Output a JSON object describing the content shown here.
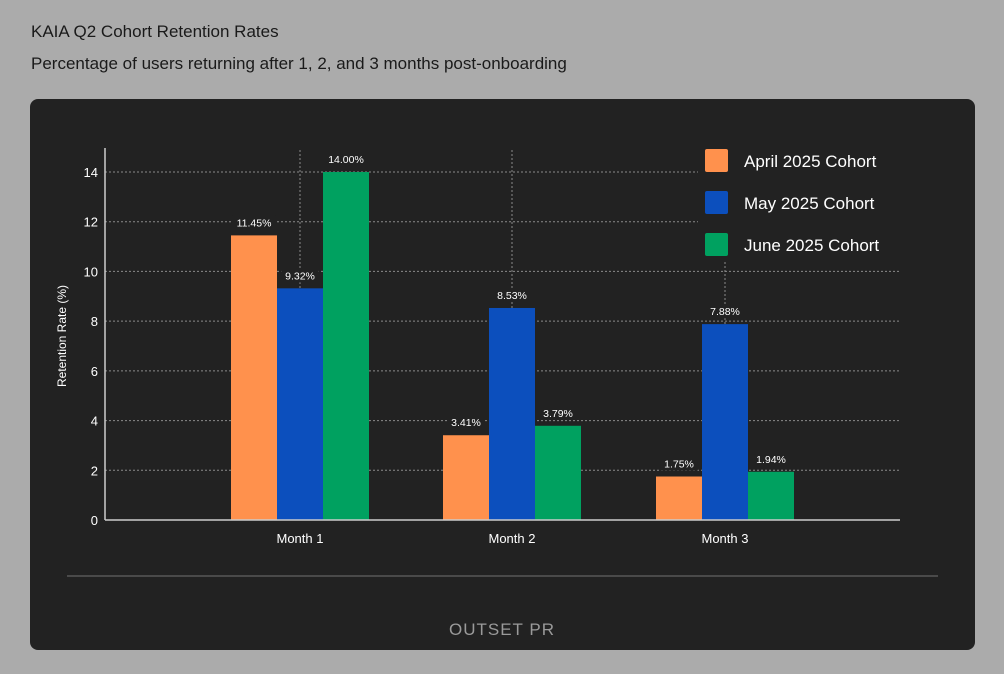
{
  "header": {
    "title": "KAIA Q2 Cohort Retention Rates",
    "subtitle": "Percentage of users returning after 1, 2, and 3 months post-onboarding"
  },
  "footer": {
    "logo": "OUTSET PR"
  },
  "chart_data": {
    "type": "bar",
    "title": "",
    "xlabel": "",
    "ylabel": "Retention Rate (%)",
    "ylim": [
      0,
      14
    ],
    "yticks": [
      0,
      2,
      4,
      6,
      8,
      10,
      12,
      14
    ],
    "grid": true,
    "legend_position": "top-right",
    "categories": [
      "Month 1",
      "Month 2",
      "Month 3"
    ],
    "series": [
      {
        "name": "April 2025 Cohort",
        "color": "#ff914d",
        "values": [
          11.45,
          3.41,
          1.75
        ],
        "labels": [
          "11.45%",
          "3.41%",
          "1.75%"
        ]
      },
      {
        "name": "May 2025 Cohort",
        "color": "#0c4fbd",
        "values": [
          9.32,
          8.53,
          7.88
        ],
        "labels": [
          "9.32%",
          "8.53%",
          "7.88%"
        ]
      },
      {
        "name": "June 2025 Cohort",
        "color": "#00a160",
        "values": [
          14.0,
          3.79,
          1.94
        ],
        "labels": [
          "14.00%",
          "3.79%",
          "1.94%"
        ]
      }
    ]
  }
}
